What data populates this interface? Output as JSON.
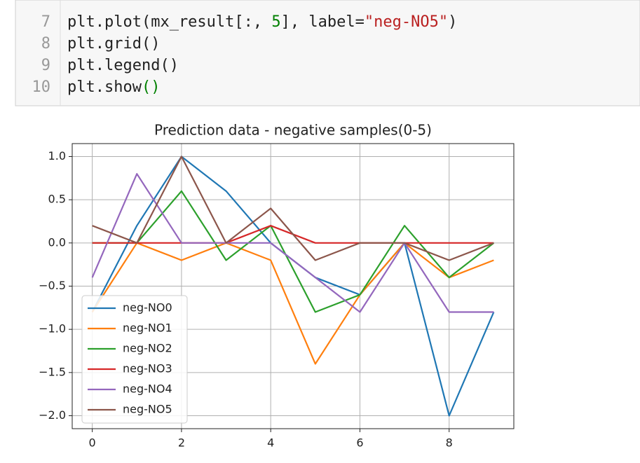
{
  "code": {
    "line_numbers": [
      7,
      8,
      9,
      10
    ],
    "lines": [
      [
        "plt.plot(mx_result[:, ",
        "5",
        "], label=",
        "\"neg-NO5\"",
        ")"
      ],
      [
        "plt.grid()"
      ],
      [
        "plt.legend()"
      ],
      [
        "plt.show",
        "()"
      ]
    ]
  },
  "chart_data": {
    "type": "line",
    "title": "Prediction data - negative samples(0-5)",
    "x": [
      0,
      1,
      2,
      3,
      4,
      5,
      6,
      7,
      8,
      9
    ],
    "series": [
      {
        "name": "neg-NO0",
        "color": "#1f77b4",
        "values": [
          -0.8,
          0.2,
          1.0,
          0.6,
          0.0,
          -0.4,
          -0.6,
          0.0,
          -2.0,
          -0.8
        ]
      },
      {
        "name": "neg-NO1",
        "color": "#ff7f0e",
        "values": [
          -0.8,
          0.0,
          -0.2,
          0.0,
          -0.2,
          -1.4,
          -0.6,
          0.0,
          -0.4,
          -0.2
        ]
      },
      {
        "name": "neg-NO2",
        "color": "#2ca02c",
        "values": [
          0.0,
          0.0,
          0.6,
          -0.2,
          0.2,
          -0.8,
          -0.6,
          0.2,
          -0.4,
          0.0
        ]
      },
      {
        "name": "neg-NO3",
        "color": "#d62728",
        "values": [
          0.0,
          0.0,
          0.0,
          0.0,
          0.2,
          0.0,
          0.0,
          0.0,
          0.0,
          0.0
        ]
      },
      {
        "name": "neg-NO4",
        "color": "#9467bd",
        "values": [
          -0.4,
          0.8,
          0.0,
          0.0,
          0.0,
          -0.4,
          -0.8,
          0.0,
          -0.8,
          -0.8
        ]
      },
      {
        "name": "neg-NO5",
        "color": "#8c564b",
        "values": [
          0.2,
          0.0,
          1.0,
          0.0,
          0.4,
          -0.2,
          0.0,
          0.0,
          -0.2,
          0.0
        ]
      }
    ],
    "xlim": [
      -0.45,
      9.45
    ],
    "ylim": [
      -2.15,
      1.15
    ],
    "xticks": [
      0,
      2,
      4,
      6,
      8
    ],
    "yticks": [
      {
        "value": 1.0,
        "label": "1.0"
      },
      {
        "value": 0.5,
        "label": "0.5"
      },
      {
        "value": 0.0,
        "label": "0.0"
      },
      {
        "value": -0.5,
        "label": "−0.5"
      },
      {
        "value": -1.0,
        "label": "−1.0"
      },
      {
        "value": -1.5,
        "label": "−1.5"
      },
      {
        "value": -2.0,
        "label": "−2.0"
      }
    ],
    "grid": true,
    "legend": "lower left"
  }
}
